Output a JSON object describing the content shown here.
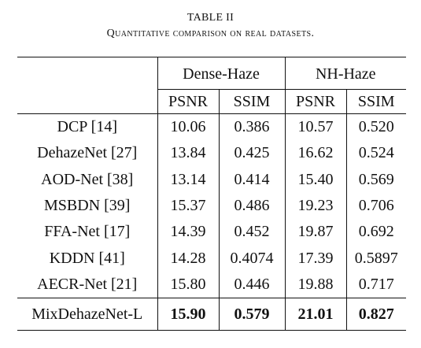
{
  "caption": {
    "label": "TABLE II",
    "title": "Quantitative comparison on real datasets."
  },
  "table": {
    "groups": [
      "Dense-Haze",
      "NH-Haze"
    ],
    "metrics": [
      "PSNR",
      "SSIM",
      "PSNR",
      "SSIM"
    ],
    "rows": [
      {
        "method": "DCP [14]",
        "values": [
          "10.06",
          "0.386",
          "10.57",
          "0.520"
        ]
      },
      {
        "method": "DehazeNet [27]",
        "values": [
          "13.84",
          "0.425",
          "16.62",
          "0.524"
        ]
      },
      {
        "method": "AOD-Net [38]",
        "values": [
          "13.14",
          "0.414",
          "15.40",
          "0.569"
        ]
      },
      {
        "method": "MSBDN [39]",
        "values": [
          "15.37",
          "0.486",
          "19.23",
          "0.706"
        ]
      },
      {
        "method": "FFA-Net [17]",
        "values": [
          "14.39",
          "0.452",
          "19.87",
          "0.692"
        ]
      },
      {
        "method": "KDDN [41]",
        "values": [
          "14.28",
          "0.4074",
          "17.39",
          "0.5897"
        ]
      },
      {
        "method": "AECR-Net [21]",
        "values": [
          "15.80",
          "0.446",
          "19.88",
          "0.717"
        ]
      },
      {
        "method": "MixDehazeNet-L",
        "values": [
          "15.90",
          "0.579",
          "21.01",
          "0.827"
        ]
      }
    ]
  }
}
